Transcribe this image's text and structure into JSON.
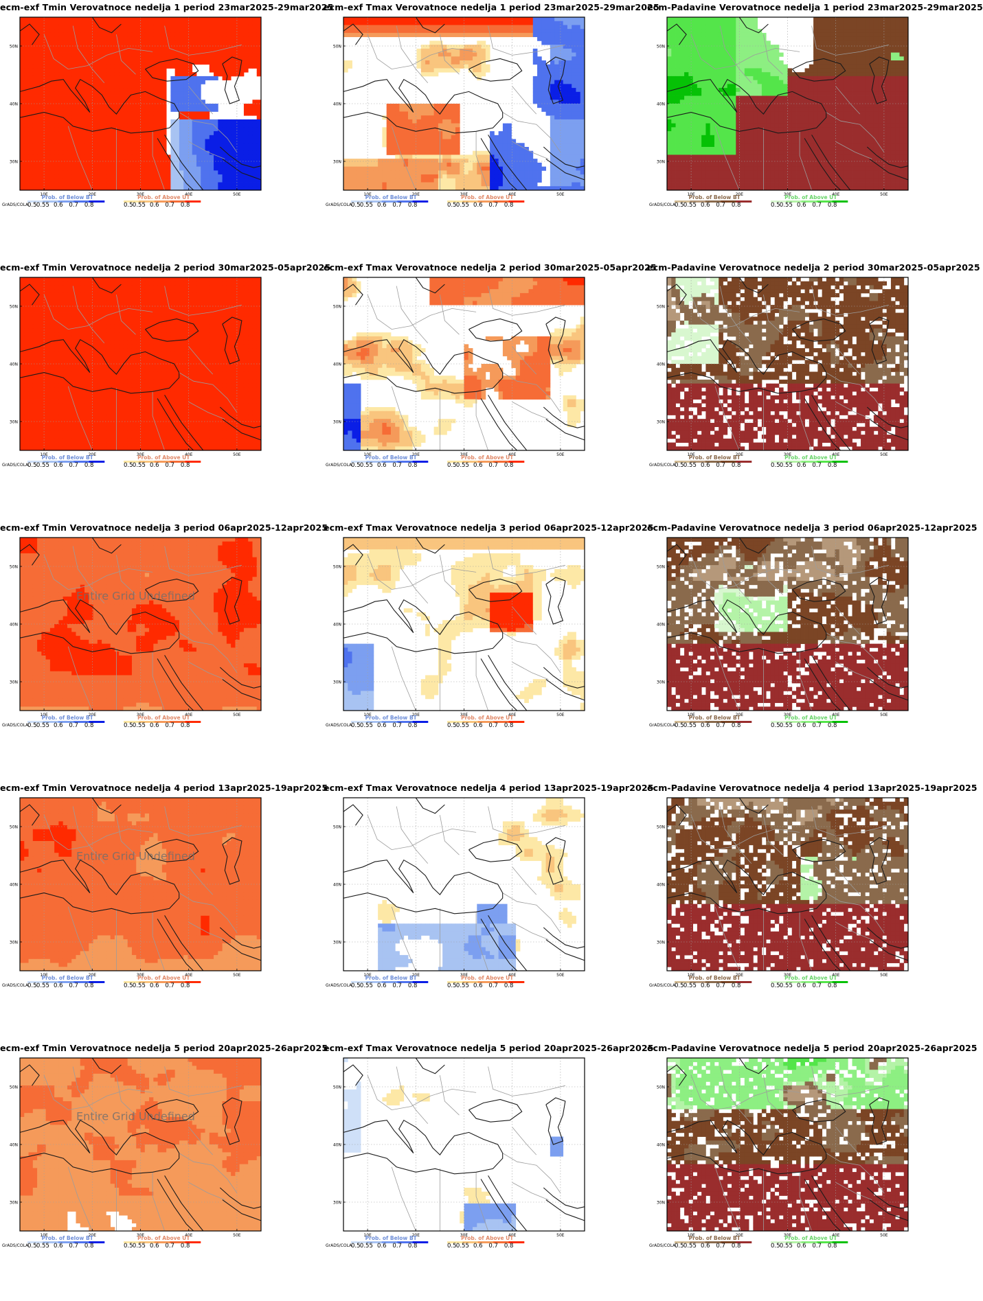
{
  "panels": [
    {
      "title": "ecm-exf Tmin Verovatnoce nedelja 1 period 23mar2025-29mar2025",
      "variable": "tmin",
      "week": 1,
      "undefined_text": ""
    },
    {
      "title": "ecm-exf Tmax Verovatnoce nedelja 1 period 23mar2025-29mar2025",
      "variable": "tmax",
      "week": 1,
      "undefined_text": ""
    },
    {
      "title": "ecm-Padavine Verovatnoce nedelja 1 period 23mar2025-29mar2025",
      "variable": "prec",
      "week": 1,
      "undefined_text": ""
    },
    {
      "title": "ecm-exf Tmin Verovatnoce nedelja 2 period 30mar2025-05apr2025",
      "variable": "tmin",
      "week": 2,
      "undefined_text": ""
    },
    {
      "title": "ecm-exf Tmax Verovatnoce nedelja 2 period 30mar2025-05apr2025",
      "variable": "tmax",
      "week": 2,
      "undefined_text": ""
    },
    {
      "title": "ecm-Padavine Verovatnoce nedelja 2 period 30mar2025-05apr2025",
      "variable": "prec",
      "week": 2,
      "undefined_text": ""
    },
    {
      "title": "ecm-exf Tmin Verovatnoce nedelja 3 period 06apr2025-12apr2025",
      "variable": "tmin",
      "week": 3,
      "undefined_text": "Entire Grid Undefined"
    },
    {
      "title": "ecm-exf Tmax Verovatnoce nedelja 3 period 06apr2025-12apr2025",
      "variable": "tmax",
      "week": 3,
      "undefined_text": ""
    },
    {
      "title": "ecm-Padavine Verovatnoce nedelja 3 period 06apr2025-12apr2025",
      "variable": "prec",
      "week": 3,
      "undefined_text": ""
    },
    {
      "title": "ecm-exf Tmin Verovatnoce nedelja 4 period 13apr2025-19apr2025",
      "variable": "tmin",
      "week": 4,
      "undefined_text": "Entire Grid Undefined"
    },
    {
      "title": "ecm-exf Tmax Verovatnoce nedelja 4 period 13apr2025-19apr2025",
      "variable": "tmax",
      "week": 4,
      "undefined_text": ""
    },
    {
      "title": "ecm-Padavine Verovatnoce nedelja 4 period 13apr2025-19apr2025",
      "variable": "prec",
      "week": 4,
      "undefined_text": ""
    },
    {
      "title": "ecm-exf Tmin Verovatnoce nedelja 5 period 20apr2025-26apr2025",
      "variable": "tmin",
      "week": 5,
      "undefined_text": "Entire Grid Undefined"
    },
    {
      "title": "ecm-exf Tmax Verovatnoce nedelja 5 period 20apr2025-26apr2025",
      "variable": "tmax",
      "week": 5,
      "undefined_text": ""
    },
    {
      "title": "ecm-Padavine Verovatnoce nedelja 5 period 20apr2025-26apr2025",
      "variable": "prec",
      "week": 5,
      "undefined_text": ""
    }
  ],
  "axes": {
    "lat_ticks": [
      "30N",
      "40N",
      "50N"
    ],
    "lon_ticks": [
      "10E",
      "20E",
      "30E",
      "40E",
      "50E"
    ],
    "lat_range": [
      25,
      55
    ],
    "lon_range": [
      5,
      55
    ]
  },
  "colorbars": {
    "credit": "GrADS/COLA",
    "left_values": [
      "0.5",
      "0.55",
      "0.6",
      "0.7",
      "0.8"
    ],
    "right_values": [
      "0.5",
      "0.55",
      "0.6",
      "0.7",
      "0.8"
    ],
    "temperature": {
      "below_label": "Prob. of Below BT",
      "above_label": "Prob. of Above UT",
      "below_colors": [
        "#cfe0f8",
        "#a8c3f2",
        "#7c9ff0",
        "#4f72ee",
        "#0a1ee6"
      ],
      "above_colors": [
        "#fde8a6",
        "#f9c57e",
        "#f59a5a",
        "#f66c36",
        "#ff2a00"
      ]
    },
    "precipitation": {
      "below_label": "Prob. of Below BT",
      "above_label": "Prob. of Above UT",
      "below_colors": [
        "#d4bd96",
        "#b5987a",
        "#8a6a4c",
        "#7b4525",
        "#9a2d2d"
      ],
      "above_colors": [
        "#d8f7cf",
        "#b4f3a7",
        "#8def82",
        "#54e54a",
        "#06c106"
      ]
    }
  }
}
